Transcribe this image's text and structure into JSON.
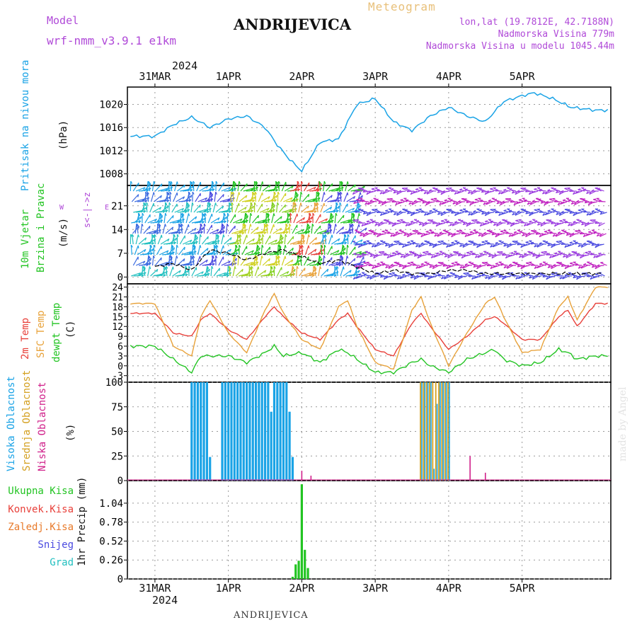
{
  "header": {
    "model_label": "Model",
    "model_name": "wrf-nmm_v3.9.1  e1km",
    "station": "ANDRIJEVICA",
    "subtitle": "Meteogram",
    "lonlat": "lon,lat (19.7812E, 42.7188N)",
    "altitude": "Nadmorska Visina 779m",
    "model_altitude": "Nadmorska Visina u modelu 1045.44m"
  },
  "top_axis": {
    "year": "2024",
    "dates": [
      "31MAR",
      "1APR",
      "2APR",
      "3APR",
      "4APR",
      "5APR"
    ]
  },
  "bottom_axis": {
    "dates": [
      "31MAR",
      "1APR",
      "2APR",
      "3APR",
      "4APR",
      "5APR"
    ],
    "year": "2024"
  },
  "footer": "ANDRIJEVICA",
  "watermark": "made by Angel",
  "colors": {
    "pressure": "#1aa3e6",
    "temp2m": "#e8403a",
    "sfc_temp": "#e8a23a",
    "dewpoint": "#22c422",
    "high_cloud": "#1aa3e6",
    "mid_cloud": "#d4a020",
    "low_cloud": "#d0208a",
    "total_precip": "#22c422",
    "purple_text": "#b04ad8"
  },
  "panels": {
    "pressure": {
      "label": "Pritisak na nivou mora",
      "unit": "(hPa)",
      "ticks": [
        "1008",
        "1012",
        "1016",
        "1020"
      ]
    },
    "wind": {
      "label1": "10m Vjetar",
      "label2": "Brzina i Pravac",
      "unit": "(m/s)",
      "compass": "s<-|->z",
      "compass_w": "W",
      "compass_e": "E",
      "ticks": [
        "0",
        "7",
        "14",
        "21"
      ]
    },
    "temp": {
      "label1": "2m Temp",
      "label2": "SFC Temp",
      "label3": "dewpt Temp",
      "unit": "(C)",
      "ticks": [
        "-3",
        "0",
        "3",
        "6",
        "9",
        "12",
        "15",
        "18",
        "21",
        "24"
      ]
    },
    "cloud": {
      "label1": "Visoka Oblacnost",
      "label2": "Srednja Oblacnost",
      "label3": "Niska Oblacnost",
      "unit": "(%)",
      "ticks": [
        "0",
        "25",
        "50",
        "75",
        "100"
      ]
    },
    "precip": {
      "legend": [
        "Ukupna Kisa",
        "Konvek.Kisa",
        "Zaledj.Kisa",
        "Snijeg",
        "Grad"
      ],
      "legend_colors": [
        "#22c422",
        "#e8403a",
        "#e87a2a",
        "#4a4ae0",
        "#22c0c0"
      ],
      "unit": "1hr Precip (mm)",
      "ticks": [
        "0",
        "0.26",
        "0.52",
        "0.78",
        "1.04"
      ]
    }
  },
  "chart_data": [
    {
      "type": "line",
      "name": "pressure",
      "x_hours": [
        0,
        6,
        12,
        18,
        24,
        30,
        36,
        40,
        44,
        48,
        54,
        60,
        66,
        72,
        78,
        84,
        90,
        96,
        102,
        108,
        114,
        120,
        124,
        130,
        136,
        144
      ],
      "values": [
        1014.5,
        1016.5,
        1017.8,
        1016.0,
        1017.5,
        1018.0,
        1016.0,
        1013.0,
        1010.5,
        1008.5,
        1013.5,
        1014.0,
        1020.0,
        1021.0,
        1017.0,
        1015.5,
        1018.0,
        1019.5,
        1018.0,
        1017.0,
        1020.5,
        1021.5,
        1022.0,
        1021.0,
        1019.5,
        1019.0
      ],
      "ylim": [
        1006,
        1023
      ]
    },
    {
      "type": "line",
      "name": "wind_speed",
      "x_hours": [
        0,
        6,
        12,
        18,
        24,
        30,
        36,
        42,
        48,
        54,
        60,
        66,
        72,
        78,
        84,
        90,
        96,
        102,
        108,
        114,
        120,
        126,
        132,
        138,
        144
      ],
      "values": [
        3,
        4,
        2,
        8,
        7,
        5,
        7,
        8,
        6,
        4,
        5,
        3,
        1,
        2,
        1,
        1,
        2,
        2,
        1,
        1,
        1,
        1,
        1,
        1,
        1
      ],
      "ylim": [
        -2,
        27
      ]
    },
    {
      "type": "line",
      "name": "temperature",
      "x_hours": [
        0,
        6,
        12,
        15,
        18,
        24,
        30,
        36,
        39,
        42,
        48,
        54,
        60,
        63,
        66,
        72,
        78,
        84,
        87,
        90,
        96,
        102,
        108,
        111,
        114,
        120,
        126,
        132,
        135,
        138,
        144
      ],
      "series": [
        {
          "name": "2m Temp",
          "values": [
            16,
            10,
            9,
            14,
            16,
            11,
            8,
            15,
            18,
            15,
            10,
            8,
            14,
            16,
            12,
            5,
            3,
            13,
            16,
            12,
            5,
            9,
            14,
            15,
            13,
            8,
            8,
            15,
            17,
            12,
            19
          ]
        },
        {
          "name": "SFC Temp",
          "values": [
            19,
            6,
            3,
            15,
            20,
            10,
            4,
            17,
            22,
            16,
            8,
            5,
            18,
            20,
            12,
            1,
            -1,
            17,
            21,
            13,
            0,
            10,
            19,
            21,
            15,
            4,
            5,
            18,
            21,
            14,
            24
          ]
        },
        {
          "name": "dewpt Temp",
          "values": [
            6,
            2,
            -2,
            3,
            3,
            3,
            1,
            4,
            6,
            3,
            4,
            1,
            5,
            4,
            2,
            -2,
            -2,
            1,
            2,
            0,
            -2,
            2,
            4,
            5,
            2,
            0,
            1,
            5,
            4,
            2,
            3
          ]
        }
      ],
      "ylim": [
        -5,
        25
      ]
    },
    {
      "type": "bar",
      "name": "cloud_cover",
      "series": [
        {
          "name": "Visoka Oblacnost",
          "ranges_hours": [
            [
              12,
              18
            ],
            [
              22,
              45
            ]
          ],
          "values": [
            100,
            100
          ]
        },
        {
          "name": "Srednja Oblacnost",
          "ranges_hours": [
            [
              87,
              96
            ]
          ],
          "values": [
            100
          ]
        },
        {
          "name": "Niska Oblacnost",
          "spikes_hours": [
            48,
            51,
            103,
            108
          ],
          "values": [
            10,
            5,
            25,
            8
          ]
        }
      ],
      "ylim": [
        0,
        100
      ]
    },
    {
      "type": "bar",
      "name": "precipitation",
      "x_hours": [
        45,
        46,
        47,
        48,
        49,
        50
      ],
      "values": [
        0.03,
        0.2,
        0.25,
        1.3,
        0.4,
        0.15
      ],
      "ylim": [
        0,
        1.35
      ]
    }
  ]
}
